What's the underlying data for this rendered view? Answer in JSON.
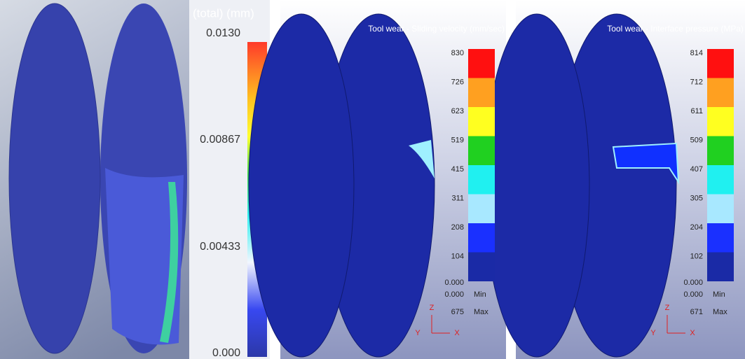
{
  "panels": [
    {
      "title": "(total) (mm)",
      "legend_labels": [
        "0.0130",
        "0.00867",
        "0.00433",
        "0.000"
      ]
    },
    {
      "title": "Tool wear - Sliding velocity (mm/sec)",
      "legend_labels": [
        "830",
        "726",
        "623",
        "519",
        "415",
        "311",
        "208",
        "104",
        "0.000"
      ],
      "min_value": "0.000",
      "min_label": "Min",
      "max_value": "675",
      "max_label": "Max",
      "axes": [
        "Z",
        "Y",
        "X"
      ]
    },
    {
      "title": "Tool wear - Interface pressure (MPa)",
      "legend_labels": [
        "814",
        "712",
        "611",
        "509",
        "407",
        "305",
        "204",
        "102",
        "0.000"
      ],
      "min_value": "0.000",
      "min_label": "Min",
      "max_value": "671",
      "max_label": "Max",
      "axes": [
        "Z",
        "Y",
        "X"
      ]
    }
  ]
}
